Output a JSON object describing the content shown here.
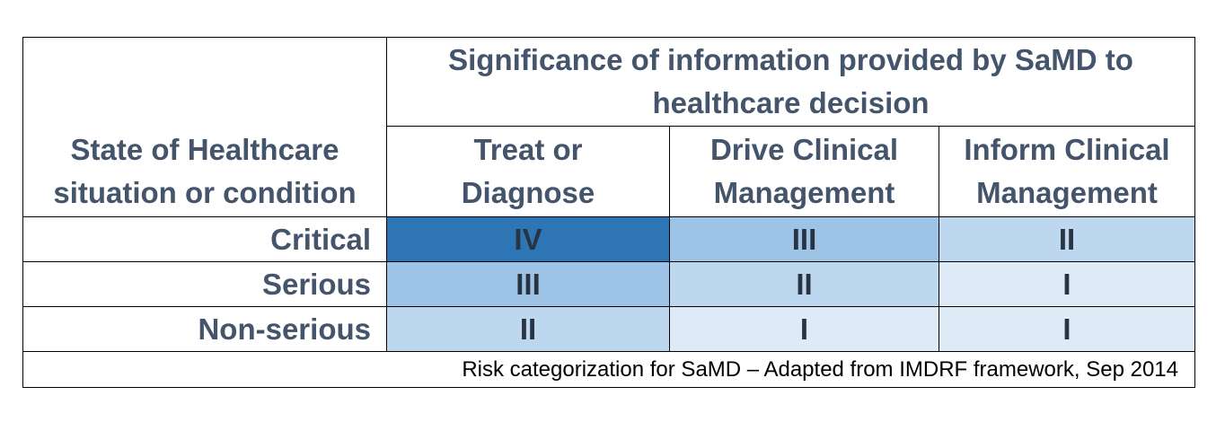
{
  "table": {
    "corner_header": {
      "line1": "State of Healthcare",
      "line2": "situation or condition"
    },
    "significance_header": {
      "line1": "Significance of information provided by SaMD to",
      "line2": "healthcare decision"
    },
    "columns": [
      {
        "line1": "Treat or",
        "line2": "Diagnose"
      },
      {
        "line1": "Drive Clinical",
        "line2": "Management"
      },
      {
        "line1": "Inform Clinical",
        "line2": "Management"
      }
    ],
    "rows": [
      {
        "label": "Critical",
        "cells": [
          "IV",
          "III",
          "II"
        ]
      },
      {
        "label": "Serious",
        "cells": [
          "III",
          "II",
          "I"
        ]
      },
      {
        "label": "Non-serious",
        "cells": [
          "II",
          "I",
          "I"
        ]
      }
    ],
    "category_colors": {
      "IV": "#2e75b6",
      "III": "#9dc3e6",
      "II": "#bdd7ee",
      "I": "#deebf7"
    },
    "text_color": "#44546a"
  },
  "caption": "Risk categorization for SaMD – Adapted from IMDRF framework, Sep 2014"
}
